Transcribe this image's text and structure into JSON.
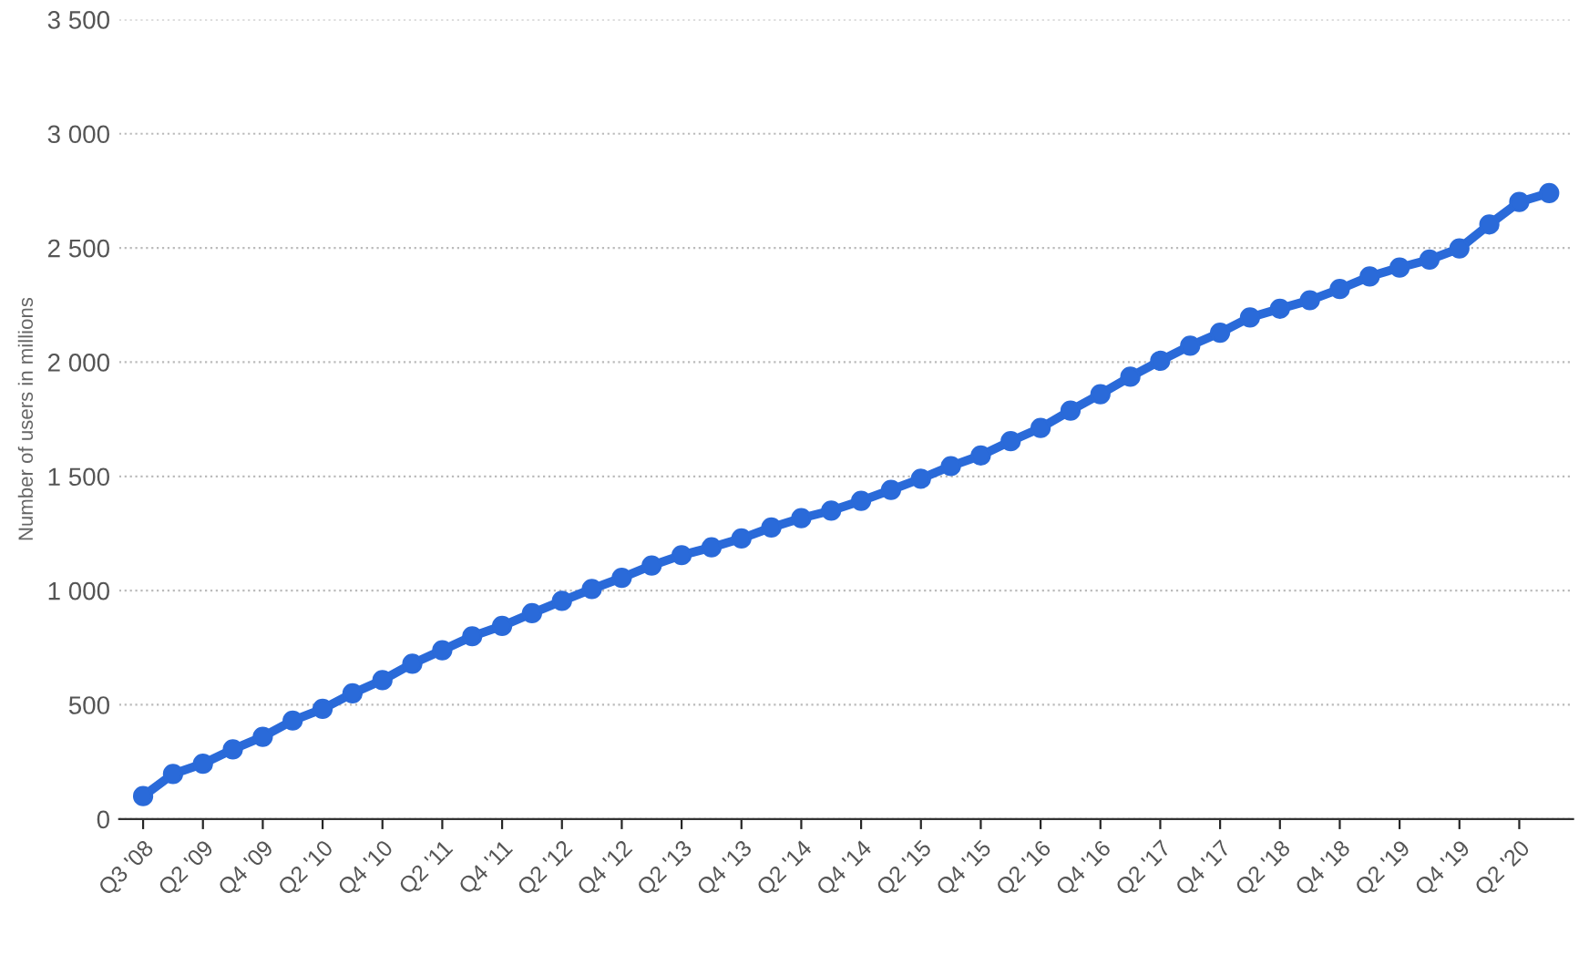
{
  "chart_data": {
    "type": "line",
    "ylabel": "Number of users in millions",
    "categories": [
      "Q3 '08",
      null,
      "Q2 '09",
      null,
      "Q4 '09",
      null,
      "Q2 '10",
      null,
      "Q4 '10",
      null,
      "Q2 '11",
      null,
      "Q4 '11",
      null,
      "Q2 '12",
      null,
      "Q4 '12",
      null,
      "Q2 '13",
      null,
      "Q4 '13",
      null,
      "Q2 '14",
      null,
      "Q4 '14",
      null,
      "Q2 '15",
      null,
      "Q4 '15",
      null,
      "Q2 '16",
      null,
      "Q4 '16",
      null,
      "Q2 '17",
      null,
      "Q4 '17",
      null,
      "Q2 '18",
      null,
      "Q4 '18",
      null,
      "Q2 '19",
      null,
      "Q4 '19",
      null,
      "Q2 '20",
      null
    ],
    "series": [
      {
        "color": "#2a6ad9",
        "values": [
          100,
          197,
          242,
          305,
          360,
          431,
          482,
          550,
          608,
          680,
          739,
          800,
          845,
          901,
          955,
          1007,
          1056,
          1110,
          1155,
          1189,
          1228,
          1276,
          1317,
          1350,
          1393,
          1441,
          1490,
          1545,
          1591,
          1654,
          1712,
          1788,
          1860,
          1936,
          2006,
          2072,
          2129,
          2196,
          2234,
          2271,
          2320,
          2375,
          2414,
          2449,
          2498,
          2603,
          2701,
          2740
        ]
      }
    ],
    "ylim": [
      0,
      3500
    ],
    "yticks": [
      0,
      500,
      {
        "value": 1000,
        "label": "1 000"
      },
      {
        "value": 1500,
        "label": "1 500"
      },
      {
        "value": 2000,
        "label": "2 000"
      },
      {
        "value": 2500,
        "label": "2 500"
      },
      {
        "value": 3000,
        "label": "3 000"
      },
      {
        "value": 3500,
        "label": "3 500"
      }
    ],
    "grid": "y",
    "marker": "circle",
    "line_style": "solid"
  }
}
